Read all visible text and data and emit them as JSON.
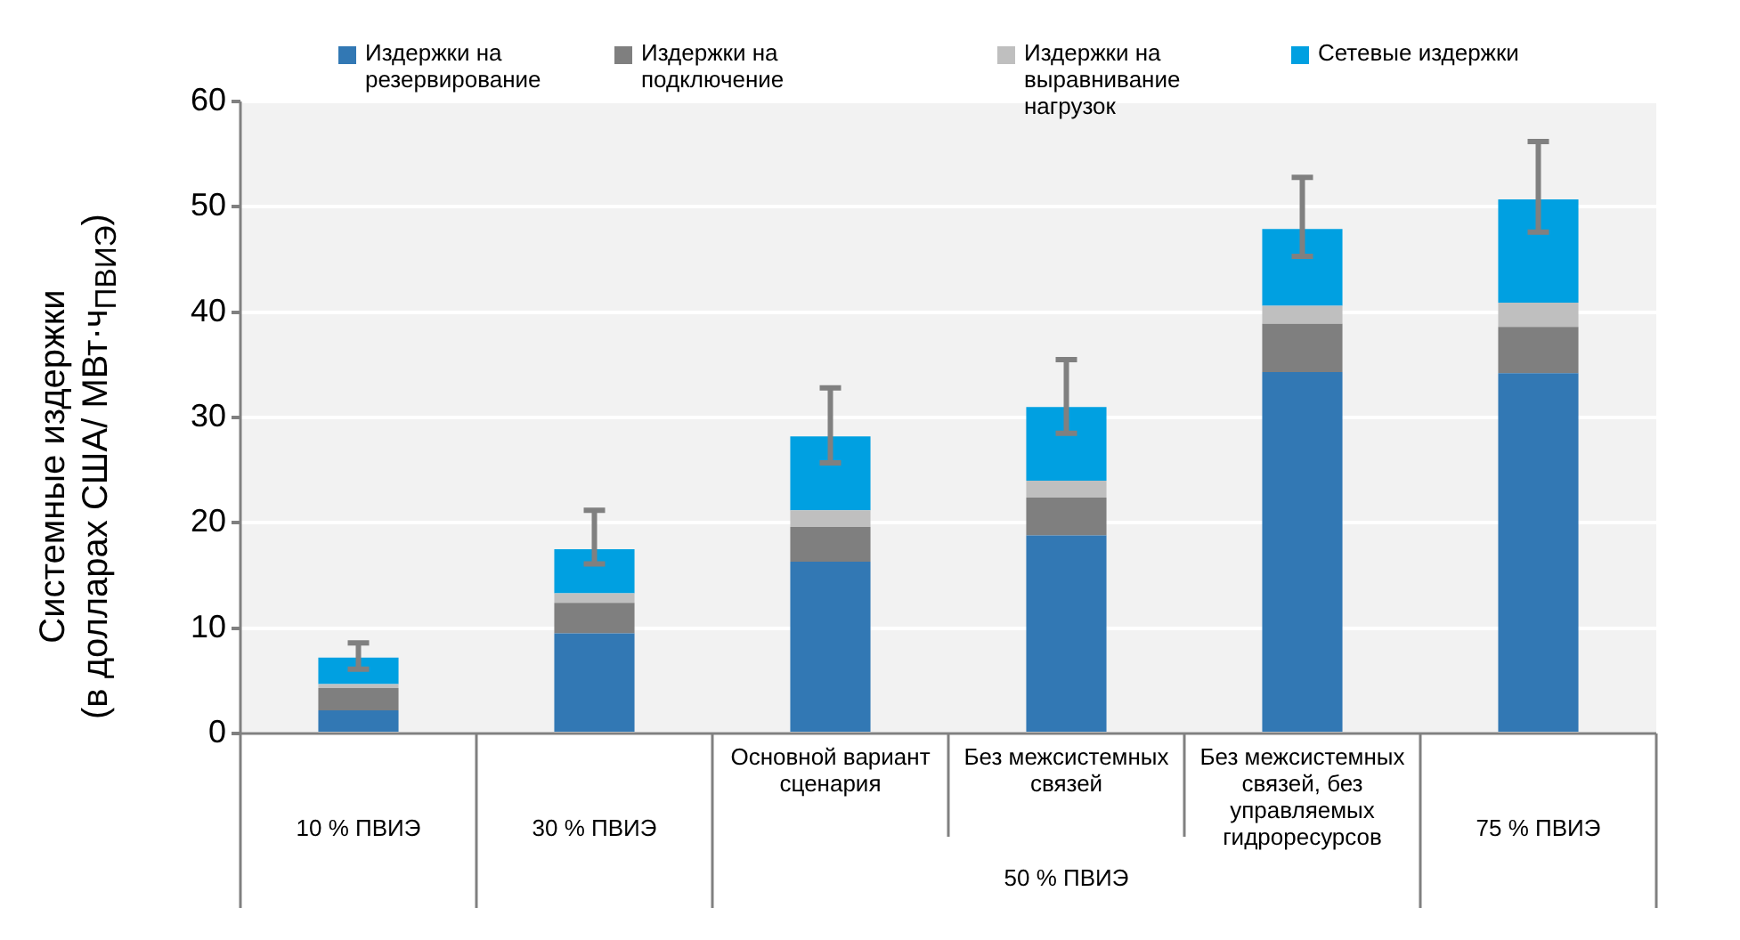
{
  "chart_data": {
    "type": "bar",
    "stacked": true,
    "categories": [
      "10 % ПВИЭ",
      "30 % ПВИЭ",
      "Основной вариант сценария",
      "Без межсистемных связей",
      "Без межсистемных связей, без управляемых гидроресурсов",
      "75 % ПВИЭ"
    ],
    "series": [
      {
        "name": "Издержки на резервирование",
        "color": "#3278b4",
        "values": [
          2.2,
          9.5,
          16.3,
          18.8,
          34.3,
          34.2
        ]
      },
      {
        "name": "Издержки на подключение",
        "color": "#7f7f7f",
        "values": [
          2.1,
          2.9,
          3.3,
          3.6,
          4.6,
          4.4
        ]
      },
      {
        "name": "Издержки на выравнивание нагрузок",
        "color": "#bfbfbf",
        "values": [
          0.4,
          0.9,
          1.6,
          1.6,
          1.7,
          2.3
        ]
      },
      {
        "name": "Сетевые издержки",
        "color": "#00a0e1",
        "values": [
          2.5,
          4.2,
          7.0,
          7.0,
          7.3,
          9.8
        ],
        "errors": [
          [
            6.1,
            8.6
          ],
          [
            16.1,
            21.2
          ],
          [
            25.7,
            32.8
          ],
          [
            28.5,
            35.5
          ],
          [
            45.3,
            52.8
          ],
          [
            47.6,
            56.2
          ]
        ]
      }
    ],
    "ylabel": "Системные издержки\n(в долларах США/ МВт·ч$_{ПВИЭ}$)",
    "annotations": [
      "50 % ПВИЭ"
    ],
    "ylim": [
      0,
      60
    ],
    "yticks": [
      0,
      10,
      20,
      30,
      40,
      50,
      60
    ],
    "grid": "y",
    "legend": "top"
  }
}
